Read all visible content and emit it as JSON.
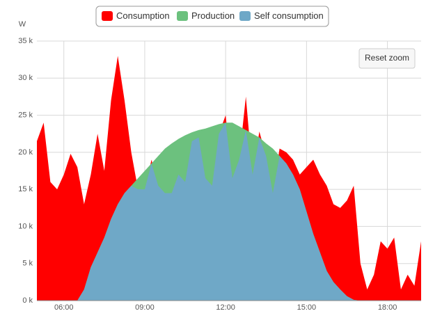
{
  "chart_data": {
    "type": "area",
    "y_label": "W",
    "reset_button": "Reset zoom",
    "x": [
      5,
      5.25,
      5.5,
      5.75,
      6,
      6.25,
      6.5,
      6.75,
      7,
      7.25,
      7.5,
      7.75,
      8,
      8.25,
      8.5,
      8.75,
      9,
      9.25,
      9.5,
      9.75,
      10,
      10.25,
      10.5,
      10.75,
      11,
      11.25,
      11.5,
      11.75,
      12,
      12.25,
      12.5,
      12.75,
      13,
      13.25,
      13.5,
      13.75,
      14,
      14.25,
      14.5,
      14.75,
      15,
      15.25,
      15.5,
      15.75,
      16,
      16.25,
      16.5,
      16.75,
      17,
      17.25,
      17.5,
      17.75,
      18,
      18.25,
      18.5,
      18.75,
      19,
      19.25
    ],
    "xlim": [
      5,
      19.25
    ],
    "xticks": [
      {
        "value": 6,
        "label": "06:00"
      },
      {
        "value": 9,
        "label": "09:00"
      },
      {
        "value": 12,
        "label": "12:00"
      },
      {
        "value": 15,
        "label": "15:00"
      },
      {
        "value": 18,
        "label": "18:00"
      }
    ],
    "ylim": [
      0,
      35000
    ],
    "yticks": [
      {
        "value": 0,
        "label": "0 k"
      },
      {
        "value": 5000,
        "label": "5 k"
      },
      {
        "value": 10000,
        "label": "10 k"
      },
      {
        "value": 15000,
        "label": "15 k"
      },
      {
        "value": 20000,
        "label": "20 k"
      },
      {
        "value": 25000,
        "label": "25 k"
      },
      {
        "value": 30000,
        "label": "30 k"
      },
      {
        "value": 35000,
        "label": "35 k"
      }
    ],
    "grid": true,
    "series": [
      {
        "name": "Consumption",
        "color": "#ff0000",
        "values": [
          21500,
          24000,
          16000,
          15000,
          17000,
          19800,
          18000,
          13000,
          17000,
          22500,
          17500,
          27000,
          33000,
          27000,
          20000,
          15000,
          15000,
          19000,
          15500,
          14500,
          14500,
          17000,
          16000,
          21500,
          22000,
          16500,
          15500,
          22500,
          25000,
          16500,
          19000,
          27500,
          17000,
          22800,
          19500,
          14500,
          20500,
          20000,
          19000,
          17000,
          18000,
          19000,
          17000,
          15500,
          13000,
          12500,
          13500,
          15500,
          5000,
          1500,
          3500,
          8000,
          7000,
          8500,
          1500,
          3500,
          2000,
          8000
        ]
      },
      {
        "name": "Production",
        "color": "#6cc17e",
        "values": [
          0,
          0,
          0,
          0,
          0,
          0,
          0,
          1500,
          4500,
          6500,
          8500,
          11000,
          13000,
          14500,
          15500,
          16500,
          17500,
          18500,
          19500,
          20500,
          21200,
          21800,
          22300,
          22700,
          23000,
          23200,
          23500,
          23800,
          24000,
          24000,
          23500,
          23000,
          22500,
          22000,
          21200,
          20500,
          19500,
          18500,
          17000,
          15000,
          12000,
          9000,
          6500,
          4000,
          2500,
          1500,
          600,
          100,
          0,
          0,
          0,
          0,
          0,
          0,
          0,
          0,
          0,
          0
        ]
      },
      {
        "name": "Self consumption",
        "color": "#6fa8c7",
        "values": [
          0,
          0,
          0,
          0,
          0,
          0,
          0,
          1500,
          4500,
          6500,
          8500,
          11000,
          13000,
          14500,
          15500,
          15000,
          15000,
          18500,
          15500,
          14500,
          14500,
          17000,
          16000,
          21500,
          22000,
          16500,
          15500,
          22500,
          24000,
          16500,
          19000,
          23000,
          17000,
          22000,
          19500,
          14500,
          19500,
          18500,
          17000,
          15000,
          12000,
          9000,
          6500,
          4000,
          2500,
          1500,
          600,
          100,
          0,
          0,
          0,
          0,
          0,
          0,
          0,
          0,
          0,
          0
        ]
      }
    ]
  }
}
